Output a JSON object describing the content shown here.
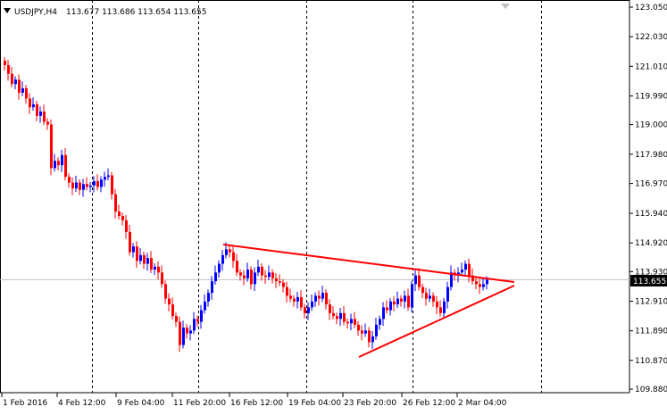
{
  "header": {
    "symbol": "USDJPY,H4",
    "ohlc": "113.677 113.686 113.654 113.655"
  },
  "price_axis": {
    "labels": [
      "123.050",
      "122.030",
      "121.010",
      "119.990",
      "119.000",
      "117.980",
      "116.970",
      "115.940",
      "114.920",
      "113.930",
      "112.910",
      "111.890",
      "110.870",
      "109.880"
    ],
    "values": [
      123.05,
      122.03,
      121.01,
      119.99,
      119.0,
      117.98,
      116.97,
      115.94,
      114.92,
      113.93,
      112.91,
      111.89,
      110.87,
      109.88
    ],
    "current_price_label": "113.655",
    "current_price": 113.655
  },
  "time_axis": {
    "labels": [
      "1 Feb 2016",
      "4 Feb 12:00",
      "9 Feb 04:00",
      "11 Feb 20:00",
      "16 Feb 12:00",
      "19 Feb 04:00",
      "23 Feb 20:00",
      "26 Feb 12:00",
      "2 Mar 04:00"
    ]
  },
  "colors": {
    "bull": "#0000ff",
    "bear": "#ff0000",
    "trendline": "#ff0000",
    "grid": "#000000",
    "price_line": "#c0c0c0"
  },
  "chart_data": {
    "type": "candlestick",
    "title": "",
    "timeframe": "H4",
    "ylim": [
      109.88,
      123.05
    ],
    "close": [
      121.05,
      120.75,
      120.4,
      120.55,
      120.1,
      120.25,
      119.9,
      119.6,
      119.7,
      119.3,
      119.45,
      119.1,
      119.0,
      117.5,
      117.75,
      117.6,
      117.95,
      117.2,
      117.0,
      116.8,
      117.0,
      116.75,
      116.95,
      116.85,
      116.9,
      117.05,
      116.85,
      117.1,
      117.2,
      117.25,
      116.6,
      116.0,
      115.85,
      115.7,
      115.3,
      114.6,
      114.8,
      114.3,
      114.5,
      114.2,
      114.4,
      114.0,
      114.1,
      113.9,
      113.5,
      113.0,
      112.8,
      112.4,
      112.2,
      111.4,
      112.0,
      111.8,
      111.9,
      112.3,
      112.2,
      112.6,
      112.9,
      113.2,
      113.6,
      113.9,
      114.2,
      114.5,
      114.7,
      114.6,
      114.3,
      113.9,
      113.8,
      113.7,
      114.0,
      113.5,
      113.9,
      114.1,
      113.8,
      113.75,
      113.9,
      113.7,
      113.6,
      113.55,
      113.4,
      113.1,
      113.0,
      112.9,
      113.05,
      112.7,
      112.5,
      112.7,
      112.9,
      113.1,
      113.0,
      113.2,
      112.8,
      112.5,
      112.4,
      112.3,
      112.5,
      112.2,
      112.15,
      112.3,
      112.1,
      111.9,
      111.8,
      111.9,
      111.5,
      111.7,
      112.1,
      112.3,
      112.7,
      112.6,
      112.9,
      112.8,
      113.0,
      112.9,
      113.1,
      112.7,
      113.5,
      113.8,
      113.4,
      113.2,
      113.0,
      113.1,
      112.9,
      112.7,
      112.5,
      112.9,
      113.4,
      113.9,
      113.8,
      113.9,
      114.0,
      114.2,
      113.8,
      113.6,
      113.5,
      113.4,
      113.5,
      113.65
    ]
  }
}
